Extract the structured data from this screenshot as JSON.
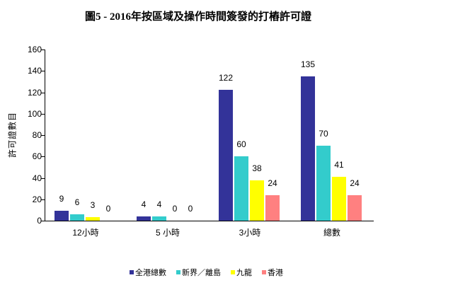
{
  "chart_data": {
    "type": "bar",
    "title": "圖5 - 2016年按區域及操作時間簽發的打樁許可證",
    "xlabel": "",
    "ylabel": "許可證數目",
    "ylim": [
      0,
      160
    ],
    "yticks": [
      0,
      20,
      40,
      60,
      80,
      100,
      120,
      140,
      160
    ],
    "grid": false,
    "legend_position": "bottom",
    "categories": [
      "12小時",
      "5 小時",
      "3小時",
      "總數"
    ],
    "series": [
      {
        "name": "全港總數",
        "color": "#333399",
        "values": [
          9,
          4,
          122,
          135
        ]
      },
      {
        "name": "新界／離島",
        "color": "#33CCCC",
        "values": [
          6,
          4,
          60,
          70
        ]
      },
      {
        "name": "九龍",
        "color": "#FFFF00",
        "values": [
          3,
          0,
          38,
          41
        ]
      },
      {
        "name": "香港",
        "color": "#FF8080",
        "values": [
          0,
          0,
          24,
          24
        ]
      }
    ]
  }
}
